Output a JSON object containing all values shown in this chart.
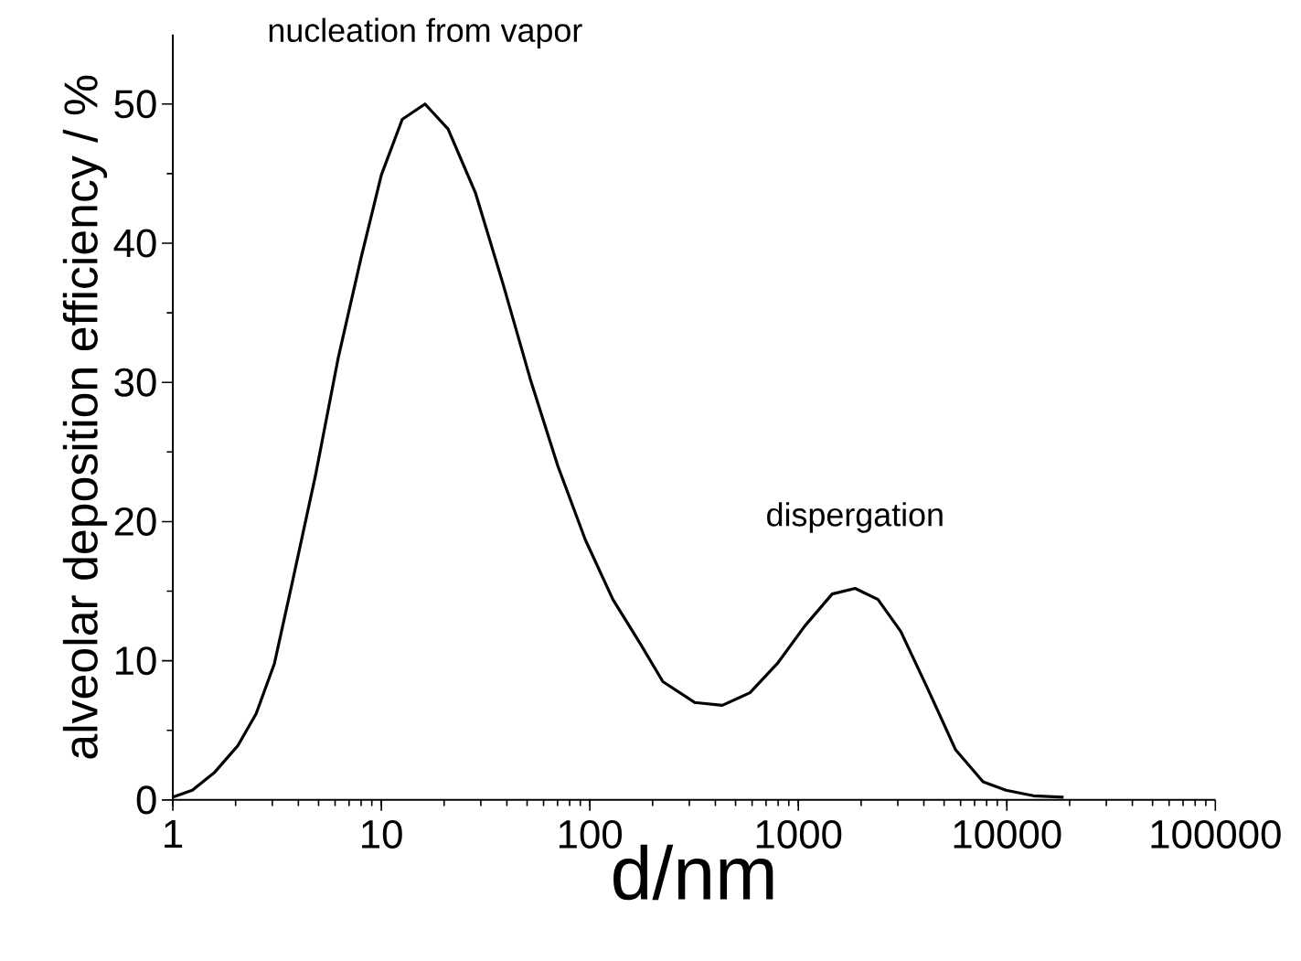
{
  "chart_data": {
    "type": "line",
    "xlabel": "d/nm",
    "ylabel": "alveolar deposition efficiency / %",
    "log": "x",
    "xlim": [
      1,
      100000
    ],
    "ylim": [
      0,
      55
    ],
    "xticks": [
      1,
      10,
      100,
      1000,
      10000,
      100000
    ],
    "yticks": [
      0,
      10,
      20,
      30,
      40,
      50
    ],
    "series": [
      {
        "color": "#000000",
        "x": [
          1,
          1.24,
          1.59,
          2.05,
          2.51,
          3.07,
          3.75,
          4.83,
          6.22,
          8.01,
          10,
          12.6,
          16.2,
          20.9,
          28.3,
          38.3,
          51.9,
          70.2,
          95.1,
          129,
          175,
          224,
          319,
          432,
          586,
          793,
          1074,
          1453,
          1872,
          2410,
          3100,
          4200,
          5680,
          7690,
          9910,
          13400,
          18700
        ],
        "values": [
          0.2,
          0.7,
          2.0,
          3.9,
          6.2,
          9.8,
          15.7,
          23.3,
          31.8,
          39.0,
          44.9,
          48.9,
          50.0,
          48.2,
          43.6,
          37.1,
          30.2,
          24.0,
          18.7,
          14.4,
          11.2,
          8.5,
          7.0,
          6.8,
          7.7,
          9.8,
          12.5,
          14.8,
          15.2,
          14.4,
          12.1,
          7.9,
          3.6,
          1.3,
          0.7,
          0.3,
          0.2
        ]
      }
    ],
    "annotations": [
      {
        "text": "nucleation from vapor",
        "x": 16.2,
        "y": 50.0
      },
      {
        "text": "dispergation",
        "x": 1872,
        "y": 15.2
      }
    ]
  }
}
